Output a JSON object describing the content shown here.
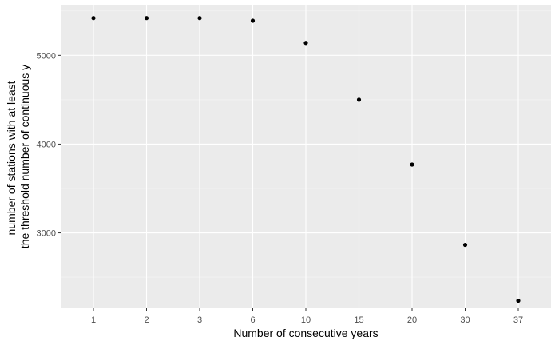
{
  "chart_data": {
    "type": "scatter",
    "title": "",
    "xlabel": "Number of consecutive years",
    "ylabel_lines": [
      "number of stations with at least",
      "the threshold number of continuous y"
    ],
    "x_is_categorical": true,
    "categories": [
      "1",
      "2",
      "3",
      "6",
      "10",
      "15",
      "20",
      "30",
      "37"
    ],
    "values": [
      5420,
      5420,
      5420,
      5390,
      5140,
      4500,
      3770,
      2865,
      2235
    ],
    "y_ticks": [
      3000,
      4000,
      5000
    ],
    "ylim": [
      2150,
      5570
    ],
    "grid": true,
    "legend": "none",
    "colors": {
      "panel": "#ebebeb",
      "grid_major": "#ffffff",
      "point": "#000000",
      "tick": "#333333"
    }
  }
}
